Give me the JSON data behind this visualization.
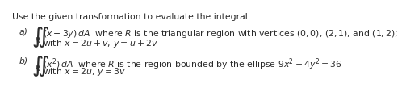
{
  "title_line": "Use the given transformation to evaluate the integral",
  "part_a_label": "a)",
  "part_a_integrand": "$(x - 3y)\\,dA$",
  "part_a_desc": " where $R$ is the triangular region with vertices $(0,0)$, $(2,1)$, and $(1,2)$;",
  "part_a_with": "with $x = 2u + v,\\, y = u + 2v$",
  "part_b_label": "b)",
  "part_b_integrand": "$(x^2)\\,dA$",
  "part_b_desc": " where $R$ is the region bounded by the ellipse $9x^2 + 4y^2 = 36$",
  "part_b_with": "with $x = 2u,\\, y = 3v$",
  "bg_color": "#ffffff",
  "text_color": "#2b2b2b",
  "font_size_title": 7.8,
  "font_size_body": 7.8,
  "font_size_integral": 14.0,
  "font_size_R": 6.0
}
